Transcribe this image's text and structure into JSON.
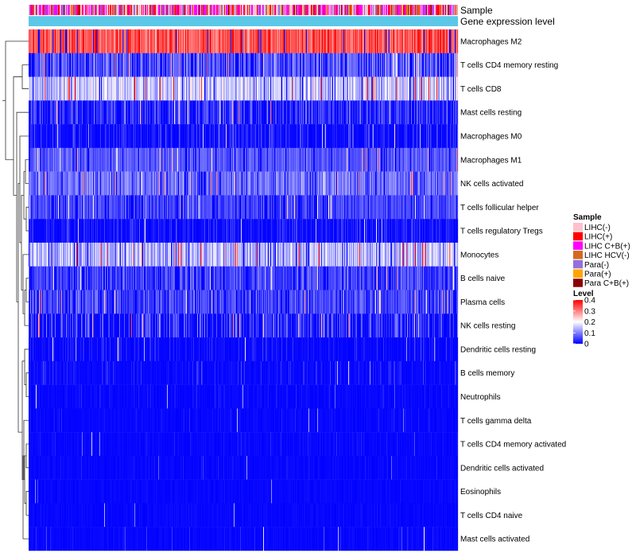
{
  "chart_data": {
    "type": "heatmap",
    "title": "",
    "annotations": [
      "Sample",
      "Gene expression level"
    ],
    "rows": [
      {
        "label": "Macrophages M2",
        "mean": 0.33,
        "spread": 0.06,
        "dark_freq": 0.05
      },
      {
        "label": "T cells CD4 memory resting",
        "mean": 0.08,
        "spread": 0.05,
        "dark_freq": 0.25
      },
      {
        "label": "T cells CD8",
        "mean": 0.15,
        "spread": 0.07,
        "dark_freq": 0.05
      },
      {
        "label": "Mast cells resting",
        "mean": 0.05,
        "spread": 0.05,
        "dark_freq": 0.35
      },
      {
        "label": "Macrophages M0",
        "mean": 0.03,
        "spread": 0.04,
        "dark_freq": 0.55
      },
      {
        "label": "Macrophages M1",
        "mean": 0.07,
        "spread": 0.03,
        "dark_freq": 0.1
      },
      {
        "label": "NK cells activated",
        "mean": 0.09,
        "spread": 0.05,
        "dark_freq": 0.1
      },
      {
        "label": "T cells follicular helper",
        "mean": 0.06,
        "spread": 0.03,
        "dark_freq": 0.2
      },
      {
        "label": "T cells regulatory  Tregs",
        "mean": 0.03,
        "spread": 0.03,
        "dark_freq": 0.55
      },
      {
        "label": "Monocytes",
        "mean": 0.14,
        "spread": 0.07,
        "dark_freq": 0.05
      },
      {
        "label": "B cells naive",
        "mean": 0.06,
        "spread": 0.04,
        "dark_freq": 0.25
      },
      {
        "label": "Plasma cells",
        "mean": 0.06,
        "spread": 0.05,
        "dark_freq": 0.2
      },
      {
        "label": "NK cells resting",
        "mean": 0.05,
        "spread": 0.06,
        "dark_freq": 0.5
      },
      {
        "label": "Dendritic cells resting",
        "mean": 0.02,
        "spread": 0.03,
        "dark_freq": 0.65
      },
      {
        "label": "B cells memory",
        "mean": 0.02,
        "spread": 0.03,
        "dark_freq": 0.7
      },
      {
        "label": "Neutrophils",
        "mean": 0.01,
        "spread": 0.02,
        "dark_freq": 0.75
      },
      {
        "label": "T cells gamma delta",
        "mean": 0.01,
        "spread": 0.02,
        "dark_freq": 0.8
      },
      {
        "label": "T cells CD4 memory activated",
        "mean": 0.01,
        "spread": 0.02,
        "dark_freq": 0.85
      },
      {
        "label": "Dendritic cells activated",
        "mean": 0.01,
        "spread": 0.02,
        "dark_freq": 0.85
      },
      {
        "label": "Eosinophils",
        "mean": 0.005,
        "spread": 0.01,
        "dark_freq": 0.9
      },
      {
        "label": "T cells CD4 naive",
        "mean": 0.005,
        "spread": 0.01,
        "dark_freq": 0.9
      },
      {
        "label": "Mast cells activated",
        "mean": 0.01,
        "spread": 0.04,
        "dark_freq": 0.85
      }
    ],
    "n_samples": 540,
    "legend_sample": {
      "title": "Sample",
      "entries": [
        {
          "label": "LIHC(-)",
          "color": "#FFC0CB"
        },
        {
          "label": "LIHC(+)",
          "color": "#FF0000"
        },
        {
          "label": "LIHC C+B(+)",
          "color": "#FF00FF"
        },
        {
          "label": "LIHC HCV(-)",
          "color": "#D2691E"
        },
        {
          "label": "Para(-)",
          "color": "#9370DB"
        },
        {
          "label": "Para(+)",
          "color": "#FFA500"
        },
        {
          "label": "Para C+B(+)",
          "color": "#8B0000"
        }
      ]
    },
    "legend_level": {
      "title": "Level",
      "ticks": [
        "0.4",
        "0.3",
        "0.2",
        "0.1",
        "0"
      ],
      "tick_values": [
        0.4,
        0.3,
        0.2,
        0.1,
        0
      ],
      "range": [
        0,
        0.4
      ],
      "colors": [
        "#0000FF",
        "#FFFFFF",
        "#FF0000"
      ]
    },
    "expression_annotation_color": "#5BC8E8"
  }
}
